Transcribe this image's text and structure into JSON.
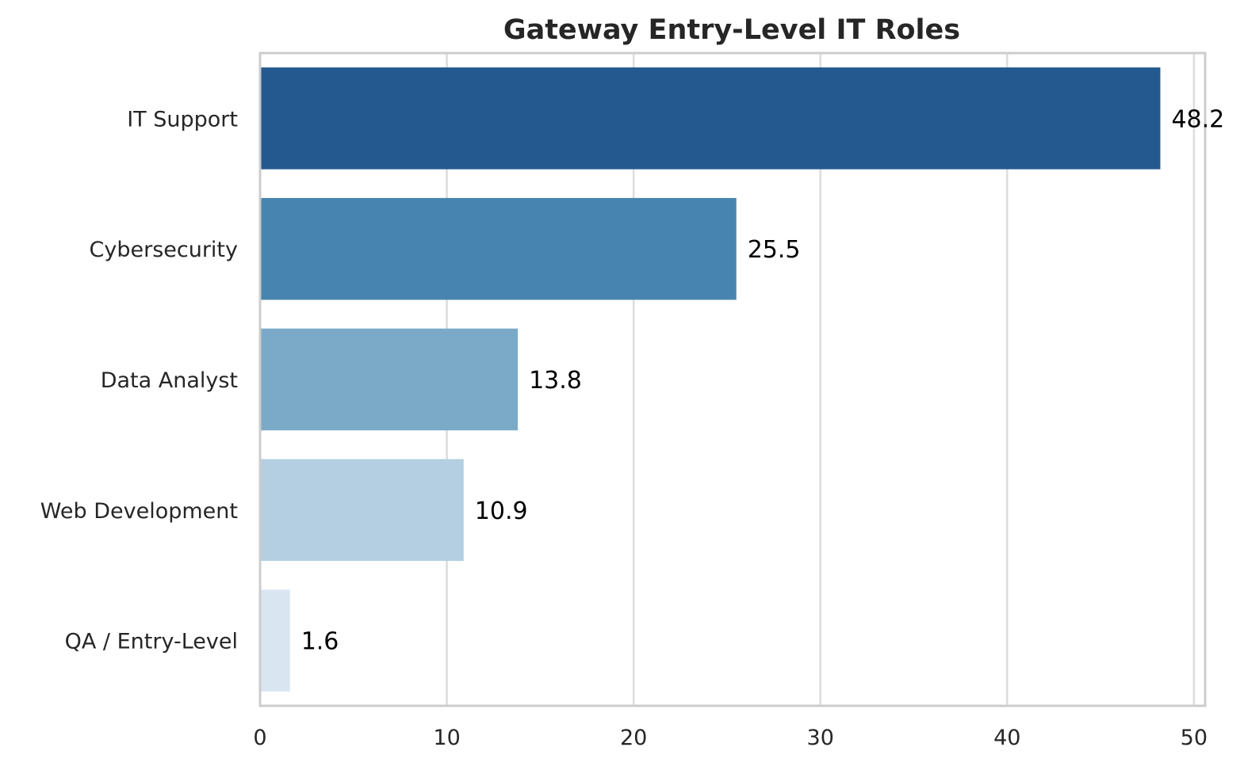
{
  "chart_data": {
    "type": "bar",
    "orientation": "horizontal",
    "title": "Gateway Entry-Level IT Roles",
    "xlabel": "",
    "ylabel": "",
    "categories": [
      "IT Support",
      "Cybersecurity",
      "Data Analyst",
      "Web Development",
      "QA / Entry-Level"
    ],
    "values": [
      48.2,
      25.5,
      13.8,
      10.9,
      1.6
    ],
    "value_labels": [
      "48.2",
      "25.5",
      "13.8",
      "10.9",
      "1.6"
    ],
    "xlim": [
      0,
      50.6
    ],
    "xticks": [
      0,
      10,
      20,
      30,
      40,
      50
    ],
    "xtick_labels": [
      "0",
      "10",
      "20",
      "30",
      "40",
      "50"
    ],
    "grid": "vertical",
    "bar_colors": [
      "#23598f",
      "#4884b0",
      "#7aaac8",
      "#b3cfe1",
      "#d9e6f2"
    ],
    "colors": {
      "grid": "#dddddd",
      "frame": "#cccccc",
      "text": "#262626",
      "value_text": "#000000"
    }
  }
}
